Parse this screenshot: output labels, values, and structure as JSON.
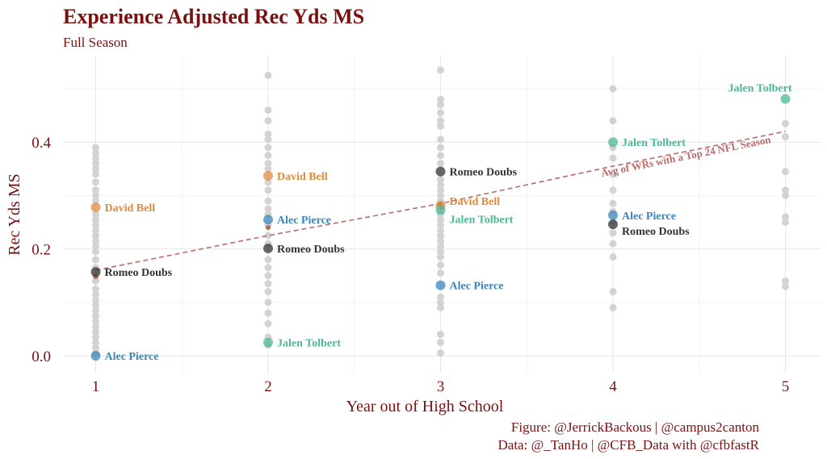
{
  "header": {
    "title": "Experience Adjusted Rec Yds MS",
    "subtitle": "Full Season"
  },
  "caption": {
    "line1": "Figure: @JerrickBackous | @campus2canton",
    "line2": "Data: @_TanHo | @CFB_Data with @cfbfastR"
  },
  "colors": {
    "David Bell": "#e08a3c",
    "Alec Pierce": "#3a86b8",
    "Romeo Doubs": "#333333",
    "Jalen Tolbert": "#4db898",
    "background_points": "#d3d3d3",
    "reference_line": "#b86b6b",
    "text": "#7a1111"
  },
  "chart_data": {
    "type": "scatter",
    "title": "Experience Adjusted Rec Yds MS",
    "subtitle": "Full Season",
    "xlabel": "Year out of High School",
    "ylabel": "Rec Yds MS",
    "x_ticks": [
      1,
      2,
      3,
      4,
      5
    ],
    "y_ticks": [
      0.0,
      0.2,
      0.4
    ],
    "y_tick_labels": [
      "0.0",
      "0.2",
      "0.4"
    ],
    "xlim": [
      0.8,
      5.2
    ],
    "ylim": [
      -0.02,
      0.56
    ],
    "grid": true,
    "background_series": [
      {
        "x": 1,
        "values": [
          0.005,
          0.015,
          0.025,
          0.035,
          0.045,
          0.055,
          0.065,
          0.075,
          0.085,
          0.095,
          0.105,
          0.115,
          0.125,
          0.14,
          0.15,
          0.165,
          0.18,
          0.195,
          0.205,
          0.215,
          0.225,
          0.235,
          0.245,
          0.255,
          0.265,
          0.29,
          0.3,
          0.31,
          0.325,
          0.34,
          0.35,
          0.36,
          0.37,
          0.38,
          0.39
        ]
      },
      {
        "x": 2,
        "values": [
          0.02,
          0.035,
          0.06,
          0.08,
          0.1,
          0.12,
          0.135,
          0.15,
          0.165,
          0.18,
          0.21,
          0.225,
          0.245,
          0.265,
          0.275,
          0.29,
          0.31,
          0.325,
          0.35,
          0.36,
          0.375,
          0.39,
          0.405,
          0.415,
          0.44,
          0.46,
          0.525
        ]
      },
      {
        "x": 3,
        "values": [
          0.005,
          0.025,
          0.04,
          0.09,
          0.1,
          0.11,
          0.155,
          0.17,
          0.185,
          0.195,
          0.205,
          0.215,
          0.225,
          0.235,
          0.245,
          0.255,
          0.265,
          0.29,
          0.3,
          0.31,
          0.32,
          0.33,
          0.36,
          0.375,
          0.39,
          0.405,
          0.43,
          0.44,
          0.455,
          0.47,
          0.48,
          0.535
        ]
      },
      {
        "x": 4,
        "values": [
          0.09,
          0.12,
          0.185,
          0.21,
          0.23,
          0.25,
          0.27,
          0.285,
          0.31,
          0.34,
          0.37,
          0.39,
          0.44,
          0.5
        ]
      },
      {
        "x": 5,
        "values": [
          0.13,
          0.14,
          0.25,
          0.26,
          0.3,
          0.31,
          0.345,
          0.41,
          0.435
        ]
      }
    ],
    "highlighted": [
      {
        "player": "David Bell",
        "x": 1,
        "y": 0.278,
        "label": "David Bell"
      },
      {
        "player": "David Bell",
        "x": 2,
        "y": 0.337,
        "label": "David Bell"
      },
      {
        "player": "David Bell",
        "x": 3,
        "y": 0.281,
        "label": "David Bell"
      },
      {
        "player": "Alec Pierce",
        "x": 1,
        "y": 0.0,
        "label": "Alec Pierce"
      },
      {
        "player": "Alec Pierce",
        "x": 2,
        "y": 0.255,
        "label": "Alec Pierce"
      },
      {
        "player": "Alec Pierce",
        "x": 3,
        "y": 0.132,
        "label": "Alec Pierce"
      },
      {
        "player": "Alec Pierce",
        "x": 4,
        "y": 0.263,
        "label": "Alec Pierce"
      },
      {
        "player": "Romeo Doubs",
        "x": 1,
        "y": 0.157,
        "label": "Romeo Doubs"
      },
      {
        "player": "Romeo Doubs",
        "x": 2,
        "y": 0.201,
        "label": "Romeo Doubs"
      },
      {
        "player": "Romeo Doubs",
        "x": 3,
        "y": 0.345,
        "label": "Romeo Doubs"
      },
      {
        "player": "Romeo Doubs",
        "x": 4,
        "y": 0.246,
        "label": "Romeo Doubs"
      },
      {
        "player": "Jalen Tolbert",
        "x": 2,
        "y": 0.025,
        "label": "Jalen Tolbert"
      },
      {
        "player": "Jalen Tolbert",
        "x": 3,
        "y": 0.273,
        "label": "Jalen Tolbert"
      },
      {
        "player": "Jalen Tolbert",
        "x": 4,
        "y": 0.4,
        "label": "Jalen Tolbert"
      },
      {
        "player": "Jalen Tolbert",
        "x": 5,
        "y": 0.481,
        "label": "Jalen Tolbert"
      }
    ],
    "small_marks": [
      {
        "x": 1,
        "y": 0.148
      },
      {
        "x": 2,
        "y": 0.24
      },
      {
        "x": 3,
        "y": 0.283
      }
    ],
    "reference_line": {
      "label": "Avg of WRs with a Top 24 NFL Season",
      "points": [
        {
          "x": 1,
          "y": 0.16
        },
        {
          "x": 2,
          "y": 0.225
        },
        {
          "x": 3,
          "y": 0.285
        },
        {
          "x": 4,
          "y": 0.355
        },
        {
          "x": 5,
          "y": 0.42
        }
      ]
    }
  }
}
